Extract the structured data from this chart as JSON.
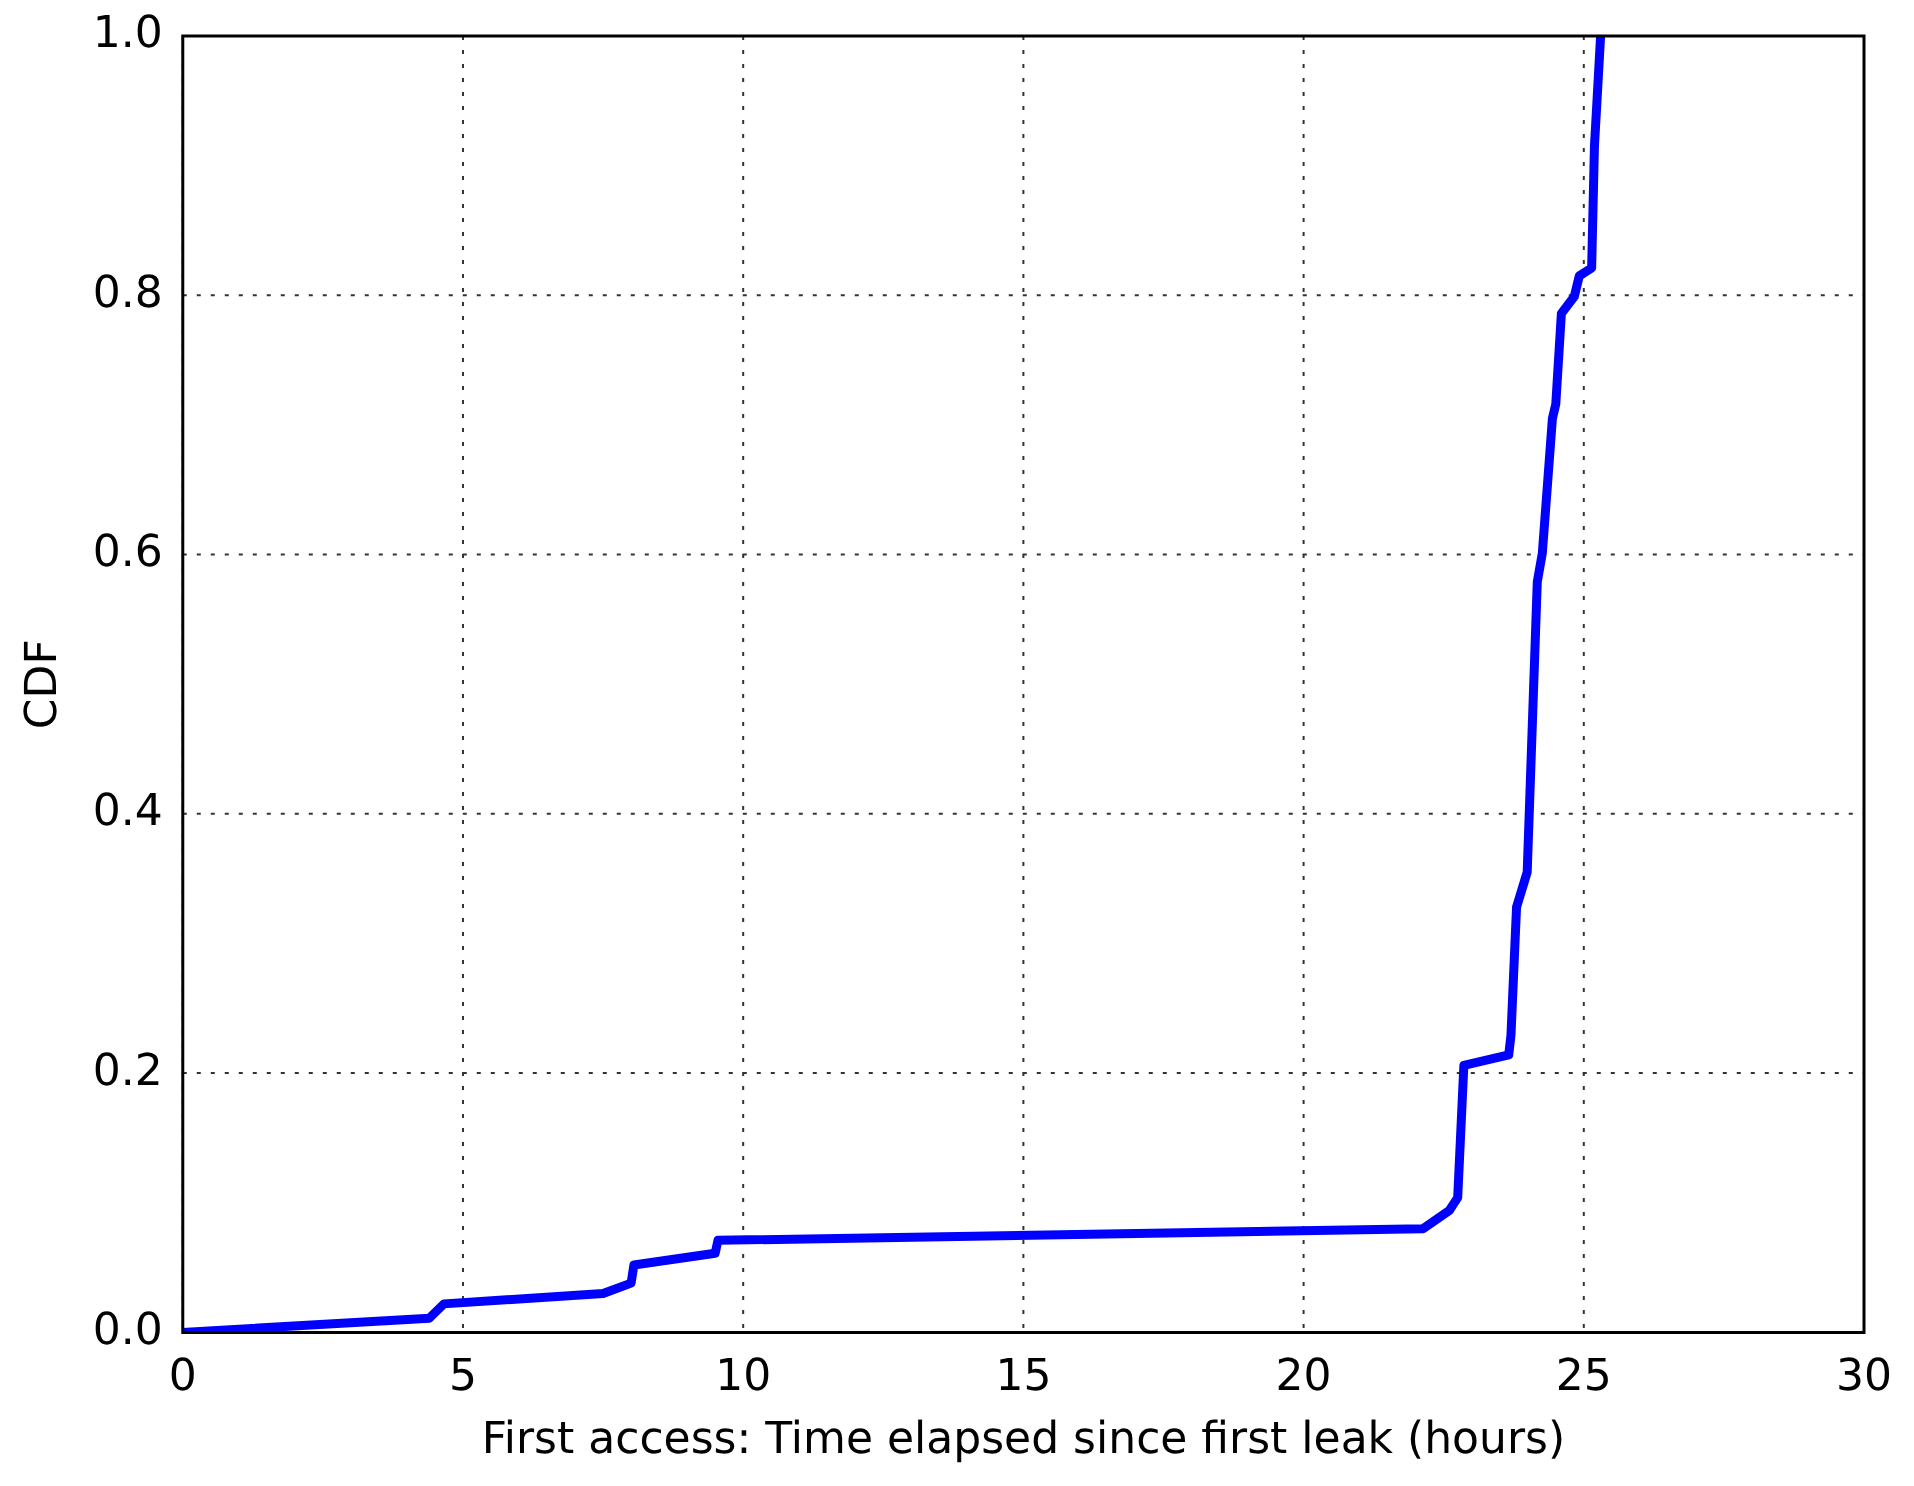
{
  "chart_data": {
    "type": "line",
    "xlabel": "First access: Time elapsed since first leak (hours)",
    "ylabel": "CDF",
    "series": [
      {
        "color": "#0000ff",
        "x": [
          0,
          4.4,
          4.66,
          7.5,
          8.0,
          8.05,
          9.5,
          9.55,
          22.13,
          22.6,
          22.75,
          22.86,
          23.66,
          23.7,
          23.8,
          23.99,
          24.17,
          24.26,
          24.44,
          24.5,
          24.6,
          24.83,
          24.92,
          25.14,
          25.19,
          25.3
        ],
        "values": [
          0,
          0.011,
          0.022,
          0.03,
          0.038,
          0.052,
          0.061,
          0.071,
          0.08,
          0.094,
          0.104,
          0.206,
          0.214,
          0.229,
          0.328,
          0.355,
          0.579,
          0.601,
          0.705,
          0.716,
          0.786,
          0.799,
          0.815,
          0.821,
          0.915,
          1.0
        ]
      }
    ],
    "xlim": [
      0,
      30
    ],
    "xticks": [
      0,
      5,
      10,
      15,
      20,
      25,
      30
    ],
    "ylim": [
      0,
      1
    ],
    "yticks": [
      {
        "value": 0,
        "label": "0.0"
      },
      {
        "value": 0.2,
        "label": "0.2"
      },
      {
        "value": 0.4,
        "label": "0.4"
      },
      {
        "value": 0.6,
        "label": "0.6"
      },
      {
        "value": 0.8,
        "label": "0.8"
      },
      {
        "value": 1,
        "label": "1.0"
      }
    ],
    "grid": true,
    "legend": false,
    "marker": "none",
    "line_style": "solid"
  }
}
